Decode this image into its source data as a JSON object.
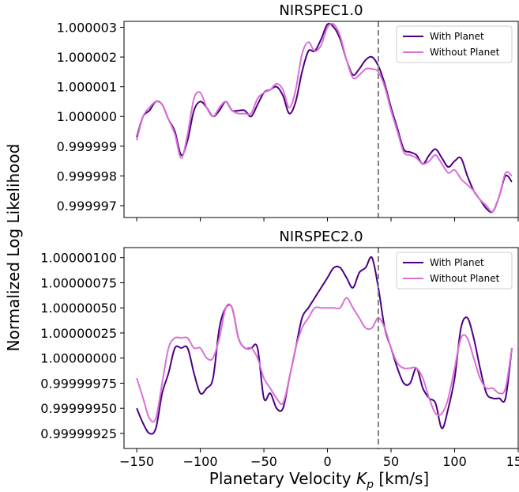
{
  "figure": {
    "ylabel": "Normalized Log Likelihood",
    "xlabel_prefix": "Planetary Velocity ",
    "xlabel_symbol": "K",
    "xlabel_sub": "p",
    "xlabel_suffix": " [km/s]"
  },
  "colors": {
    "with_planet": "#4b0082",
    "without_planet": "#da70d6",
    "vline": "#808080"
  },
  "chart_data": [
    {
      "type": "line",
      "title": "NIRSPEC1.0",
      "xlim": [
        -160,
        150
      ],
      "ylim": [
        0.9999966,
        1.0000032
      ],
      "xticks": [
        -150,
        -100,
        -50,
        0,
        50,
        100,
        150
      ],
      "yticks": [
        0.999997,
        0.999998,
        0.999999,
        1.0,
        1.000001,
        1.000002,
        1.000003
      ],
      "ytick_labels": [
        "0.999997",
        "0.999998",
        "0.999999",
        "1.000000",
        "1.000001",
        "1.000002",
        "1.000003"
      ],
      "xtick_labels_visible": false,
      "vline_x": 40,
      "legend_position": "top-right",
      "series": [
        {
          "name": "With Planet",
          "color": "#4b0082",
          "x": [
            -150,
            -145,
            -140,
            -135,
            -130,
            -125,
            -120,
            -115,
            -110,
            -105,
            -100,
            -95,
            -90,
            -85,
            -80,
            -75,
            -70,
            -65,
            -60,
            -55,
            -50,
            -45,
            -40,
            -35,
            -30,
            -25,
            -20,
            -15,
            -10,
            -5,
            0,
            5,
            10,
            15,
            20,
            25,
            30,
            35,
            40,
            45,
            50,
            55,
            60,
            65,
            70,
            75,
            80,
            85,
            90,
            95,
            100,
            105,
            110,
            115,
            120,
            125,
            130,
            135,
            140,
            145
          ],
          "y": [
            0.9999993,
            1.0,
            1.0000002,
            1.0000005,
            1.0000004,
            0.9999999,
            0.9999995,
            0.9999987,
            0.9999992,
            1.0000002,
            1.0000005,
            1.0000003,
            1.0,
            1.0000002,
            1.0000005,
            1.0000002,
            1.0000002,
            1.0000002,
            1.0,
            1.0000004,
            1.0000008,
            1.0000009,
            1.000001,
            1.0000007,
            1.0000001,
            1.0000005,
            1.0000015,
            1.0000022,
            1.0000022,
            1.0000026,
            1.0000031,
            1.000003,
            1.0000026,
            1.0000019,
            1.0000014,
            1.0000016,
            1.0000019,
            1.000002,
            1.0000017,
            1.0000011,
            1.0000003,
            0.9999996,
            0.9999989,
            0.9999988,
            0.9999987,
            0.9999984,
            0.9999987,
            0.9999989,
            0.9999986,
            0.9999983,
            0.9999985,
            0.9999986,
            0.999998,
            0.9999975,
            0.9999972,
            0.9999969,
            0.9999968,
            0.9999973,
            0.999998,
            0.9999978
          ]
        },
        {
          "name": "Without Planet",
          "color": "#da70d6",
          "x": [
            -150,
            -145,
            -140,
            -135,
            -130,
            -125,
            -120,
            -115,
            -110,
            -105,
            -100,
            -95,
            -90,
            -85,
            -80,
            -75,
            -70,
            -65,
            -60,
            -55,
            -50,
            -45,
            -40,
            -35,
            -30,
            -25,
            -20,
            -15,
            -10,
            -5,
            0,
            5,
            10,
            15,
            20,
            25,
            30,
            35,
            40,
            45,
            50,
            55,
            60,
            65,
            70,
            75,
            80,
            85,
            90,
            95,
            100,
            105,
            110,
            115,
            120,
            125,
            130,
            135,
            140,
            145
          ],
          "y": [
            0.9999992,
            1.0,
            1.0000003,
            1.0000005,
            1.0000004,
            0.9999999,
            0.9999994,
            0.9999986,
            0.9999994,
            1.0000006,
            1.0000008,
            1.0000003,
            1.0,
            1.0000003,
            1.0000005,
            1.0000002,
            1.0000001,
            1.0000001,
            1.0000001,
            1.0000006,
            1.0000008,
            1.0000009,
            1.0000011,
            1.0000009,
            1.0000003,
            1.0000009,
            1.0000021,
            1.0000025,
            1.0000022,
            1.0000024,
            1.000003,
            1.0000031,
            1.0000027,
            1.0000019,
            1.0000013,
            1.0000014,
            1.0000016,
            1.0000016,
            1.0000015,
            1.000001,
            1.0000002,
            0.9999995,
            0.9999988,
            0.9999987,
            0.9999986,
            0.9999984,
            0.9999985,
            0.9999987,
            0.9999984,
            0.9999981,
            0.9999982,
            0.9999979,
            0.9999977,
            0.9999975,
            0.9999972,
            0.999997,
            0.9999968,
            0.9999973,
            0.9999981,
            0.999998
          ]
        }
      ]
    },
    {
      "type": "line",
      "title": "NIRSPEC2.0",
      "xlim": [
        -160,
        150
      ],
      "ylim": [
        0.9999991,
        1.0000011
      ],
      "xticks": [
        -150,
        -100,
        -50,
        0,
        50,
        100,
        150
      ],
      "xtick_labels": [
        "−150",
        "−100",
        "−50",
        "0",
        "50",
        "100",
        "150"
      ],
      "yticks": [
        0.99999925,
        0.9999995,
        0.99999975,
        1.0,
        1.00000025,
        1.0000005,
        1.00000075,
        1.000001
      ],
      "ytick_labels": [
        "0.99999925",
        "0.99999950",
        "0.99999975",
        "1.00000000",
        "1.00000025",
        "1.00000050",
        "1.00000075",
        "1.00000100"
      ],
      "xtick_labels_visible": true,
      "vline_x": 40,
      "legend_position": "top-right",
      "series": [
        {
          "name": "With Planet",
          "color": "#4b0082",
          "x": [
            -150,
            -145,
            -140,
            -135,
            -130,
            -125,
            -120,
            -115,
            -110,
            -105,
            -100,
            -95,
            -90,
            -85,
            -80,
            -75,
            -70,
            -65,
            -60,
            -55,
            -50,
            -45,
            -40,
            -35,
            -30,
            -25,
            -20,
            -15,
            -10,
            -5,
            0,
            5,
            10,
            15,
            20,
            25,
            30,
            35,
            40,
            45,
            50,
            55,
            60,
            65,
            70,
            75,
            80,
            85,
            90,
            95,
            100,
            105,
            110,
            115,
            120,
            125,
            130,
            135,
            140,
            145
          ],
          "y": [
            0.9999995,
            0.99999935,
            0.99999925,
            0.9999993,
            0.99999965,
            0.99999985,
            1.0000001,
            1.0000001,
            1.0000001,
            0.99999985,
            0.99999965,
            0.9999997,
            0.9999998,
            1.0000003,
            1.0000005,
            1.0000005,
            1.0000002,
            1.0000001,
            1.0000001,
            1.0000001,
            0.9999996,
            0.99999965,
            0.9999995,
            0.9999995,
            0.9999998,
            1.0000001,
            1.0000004,
            1.0000005,
            1.0000006,
            1.0000007,
            1.0000008,
            1.0000009,
            1.0000009,
            1.0000008,
            1.0000007,
            1.00000085,
            1.0000009,
            1.000001,
            1.0000007,
            1.0000003,
            1.0000001,
            0.9999999,
            0.99999975,
            0.99999975,
            0.9999999,
            0.9999997,
            0.9999996,
            0.99999955,
            0.9999993,
            0.9999995,
            0.9999998,
            1.0000003,
            1.0000004,
            1.0000002,
            0.9999999,
            0.99999965,
            0.9999996,
            0.9999996,
            0.9999996,
            1.0000001
          ]
        },
        {
          "name": "Without Planet",
          "color": "#da70d6",
          "x": [
            -150,
            -145,
            -140,
            -135,
            -130,
            -125,
            -120,
            -115,
            -110,
            -105,
            -100,
            -95,
            -90,
            -85,
            -80,
            -75,
            -70,
            -65,
            -60,
            -55,
            -50,
            -45,
            -40,
            -35,
            -30,
            -25,
            -20,
            -15,
            -10,
            -5,
            0,
            5,
            10,
            15,
            20,
            25,
            30,
            35,
            40,
            45,
            50,
            55,
            60,
            65,
            70,
            75,
            80,
            85,
            90,
            95,
            100,
            105,
            110,
            115,
            120,
            125,
            130,
            135,
            140,
            145
          ],
          "y": [
            0.9999998,
            0.9999996,
            0.9999994,
            0.9999994,
            0.99999975,
            1.0000001,
            1.0000002,
            1.0000002,
            1.0000002,
            1.0000001,
            1.0000001,
            1.0,
            1.0,
            1.0000002,
            1.0000005,
            1.0000005,
            1.0000002,
            1.0000001,
            1.0000001,
            1.0,
            0.9999998,
            0.9999997,
            0.9999996,
            0.99999955,
            0.9999998,
            1.0000001,
            1.0000003,
            1.0000004,
            1.0000005,
            1.0000005,
            1.0000005,
            1.0000005,
            1.0000005,
            1.0000006,
            1.0000005,
            1.0000004,
            1.0000003,
            1.0000003,
            1.0000004,
            1.0000003,
            1.0000001,
            0.99999995,
            0.9999999,
            0.9999999,
            0.9999999,
            0.9999998,
            0.9999996,
            0.99999945,
            0.99999945,
            0.9999996,
            0.9999999,
            1.0000002,
            1.0000002,
            1.0,
            0.9999998,
            0.9999997,
            0.9999997,
            0.99999965,
            0.9999997,
            1.0000001
          ]
        }
      ]
    }
  ]
}
